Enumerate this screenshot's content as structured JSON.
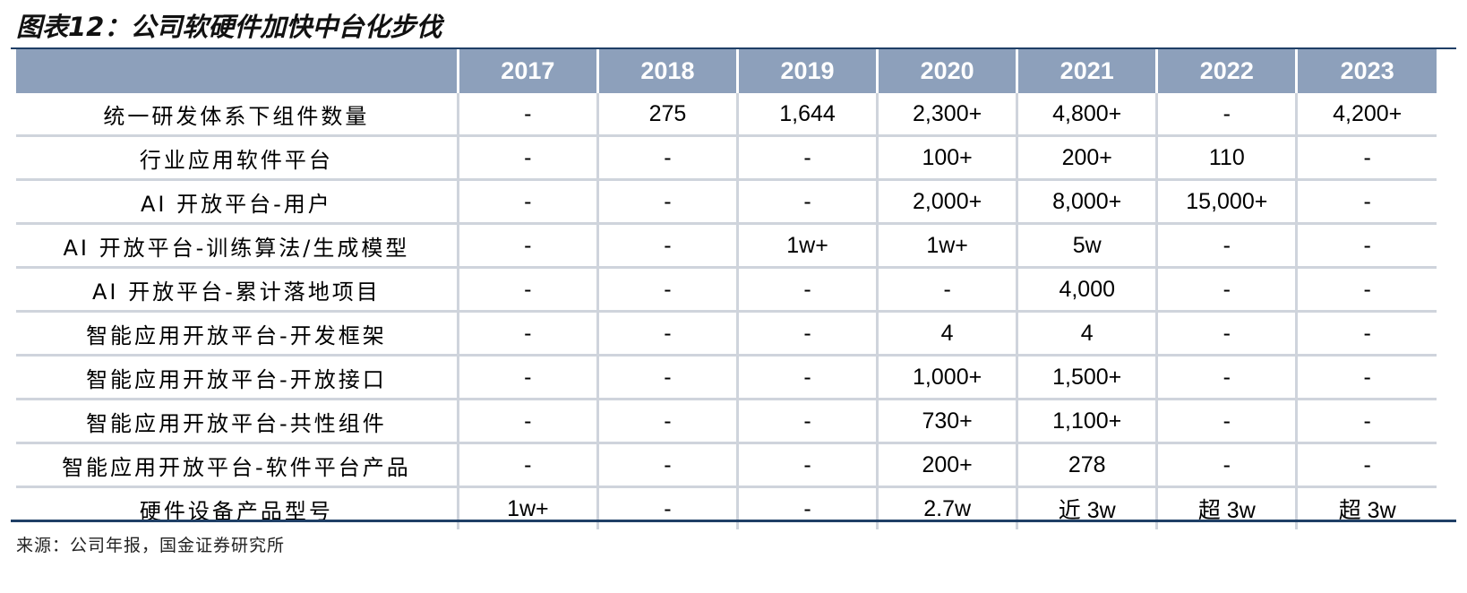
{
  "title": "图表12：公司软硬件加快中台化步伐",
  "table": {
    "header": {
      "label": "",
      "years": [
        "2017",
        "2018",
        "2019",
        "2020",
        "2021",
        "2022",
        "2023"
      ]
    },
    "rows": [
      {
        "label": "统一研发体系下组件数量",
        "values": [
          "-",
          "275",
          "1,644",
          "2,300+",
          "4,800+",
          "-",
          "4,200+"
        ]
      },
      {
        "label": "行业应用软件平台",
        "values": [
          "-",
          "-",
          "-",
          "100+",
          "200+",
          "110",
          "-"
        ]
      },
      {
        "label": "AI 开放平台-用户",
        "values": [
          "-",
          "-",
          "-",
          "2,000+",
          "8,000+",
          "15,000+",
          "-"
        ]
      },
      {
        "label": "AI 开放平台-训练算法/生成模型",
        "values": [
          "-",
          "-",
          "1w+",
          "1w+",
          "5w",
          "-",
          "-"
        ]
      },
      {
        "label": "AI 开放平台-累计落地项目",
        "values": [
          "-",
          "-",
          "-",
          "-",
          "4,000",
          "-",
          "-"
        ]
      },
      {
        "label": "智能应用开放平台-开发框架",
        "values": [
          "-",
          "-",
          "-",
          "4",
          "4",
          "-",
          "-"
        ]
      },
      {
        "label": "智能应用开放平台-开放接口",
        "values": [
          "-",
          "-",
          "-",
          "1,000+",
          "1,500+",
          "-",
          "-"
        ]
      },
      {
        "label": "智能应用开放平台-共性组件",
        "values": [
          "-",
          "-",
          "-",
          "730+",
          "1,100+",
          "-",
          "-"
        ]
      },
      {
        "label": "智能应用开放平台-软件平台产品",
        "values": [
          "-",
          "-",
          "-",
          "200+",
          "278",
          "-",
          "-"
        ]
      },
      {
        "label": "硬件设备产品型号",
        "values": [
          "1w+",
          "-",
          "-",
          "2.7w",
          "近 3w",
          "超 3w",
          "超 3w"
        ]
      }
    ]
  },
  "source": "来源：公司年报，国金证券研究所"
}
